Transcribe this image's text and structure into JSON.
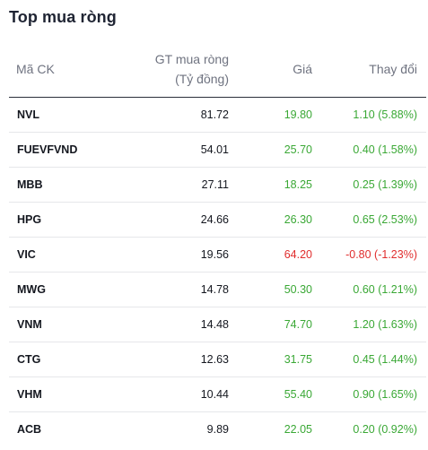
{
  "widget": {
    "title": "Top mua ròng",
    "colors": {
      "up": "#3aa835",
      "down": "#e02d2d"
    }
  },
  "table": {
    "headers": {
      "code": "Mã CK",
      "gt_line1": "GT mua ròng",
      "gt_line2": "(Tỷ đồng)",
      "price": "Giá",
      "change": "Thay đổi"
    },
    "rows": [
      {
        "code": "NVL",
        "gt": "81.72",
        "price": "19.80",
        "change": "1.10 (5.88%)",
        "direction": "up"
      },
      {
        "code": "FUEVFVND",
        "gt": "54.01",
        "price": "25.70",
        "change": "0.40 (1.58%)",
        "direction": "up"
      },
      {
        "code": "MBB",
        "gt": "27.11",
        "price": "18.25",
        "change": "0.25 (1.39%)",
        "direction": "up"
      },
      {
        "code": "HPG",
        "gt": "24.66",
        "price": "26.30",
        "change": "0.65 (2.53%)",
        "direction": "up"
      },
      {
        "code": "VIC",
        "gt": "19.56",
        "price": "64.20",
        "change": "-0.80 (-1.23%)",
        "direction": "down"
      },
      {
        "code": "MWG",
        "gt": "14.78",
        "price": "50.30",
        "change": "0.60 (1.21%)",
        "direction": "up"
      },
      {
        "code": "VNM",
        "gt": "14.48",
        "price": "74.70",
        "change": "1.20 (1.63%)",
        "direction": "up"
      },
      {
        "code": "CTG",
        "gt": "12.63",
        "price": "31.75",
        "change": "0.45 (1.44%)",
        "direction": "up"
      },
      {
        "code": "VHM",
        "gt": "10.44",
        "price": "55.40",
        "change": "0.90 (1.65%)",
        "direction": "up"
      },
      {
        "code": "ACB",
        "gt": "9.89",
        "price": "22.05",
        "change": "0.20 (0.92%)",
        "direction": "up"
      }
    ]
  }
}
